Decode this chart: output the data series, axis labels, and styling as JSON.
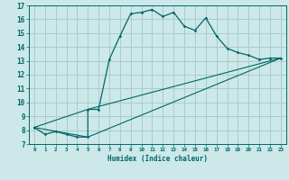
{
  "title": "",
  "xlabel": "Humidex (Indice chaleur)",
  "ylabel": "",
  "bg_color": "#cce8e8",
  "grid_color": "#aacccc",
  "line_color": "#006666",
  "xlim": [
    -0.5,
    23.5
  ],
  "ylim": [
    7,
    17
  ],
  "xticks": [
    0,
    1,
    2,
    3,
    4,
    5,
    6,
    7,
    8,
    9,
    10,
    11,
    12,
    13,
    14,
    15,
    16,
    17,
    18,
    19,
    20,
    21,
    22,
    23
  ],
  "yticks": [
    7,
    8,
    9,
    10,
    11,
    12,
    13,
    14,
    15,
    16,
    17
  ],
  "line1_x": [
    0,
    1,
    2,
    3,
    4,
    5,
    5,
    6,
    7,
    8,
    9,
    10,
    11,
    12,
    13,
    14,
    15,
    16,
    17,
    18,
    19,
    20,
    21,
    22,
    23
  ],
  "line1_y": [
    8.2,
    7.7,
    7.9,
    7.7,
    7.5,
    7.5,
    9.5,
    9.5,
    13.1,
    14.8,
    16.4,
    16.5,
    16.7,
    16.2,
    16.5,
    15.5,
    15.2,
    16.1,
    14.8,
    13.9,
    13.6,
    13.4,
    13.1,
    13.2,
    13.2
  ],
  "line2_x": [
    0,
    5,
    23
  ],
  "line2_y": [
    8.2,
    7.5,
    13.2
  ],
  "line3_x": [
    0,
    5,
    23
  ],
  "line3_y": [
    8.2,
    9.5,
    13.2
  ]
}
